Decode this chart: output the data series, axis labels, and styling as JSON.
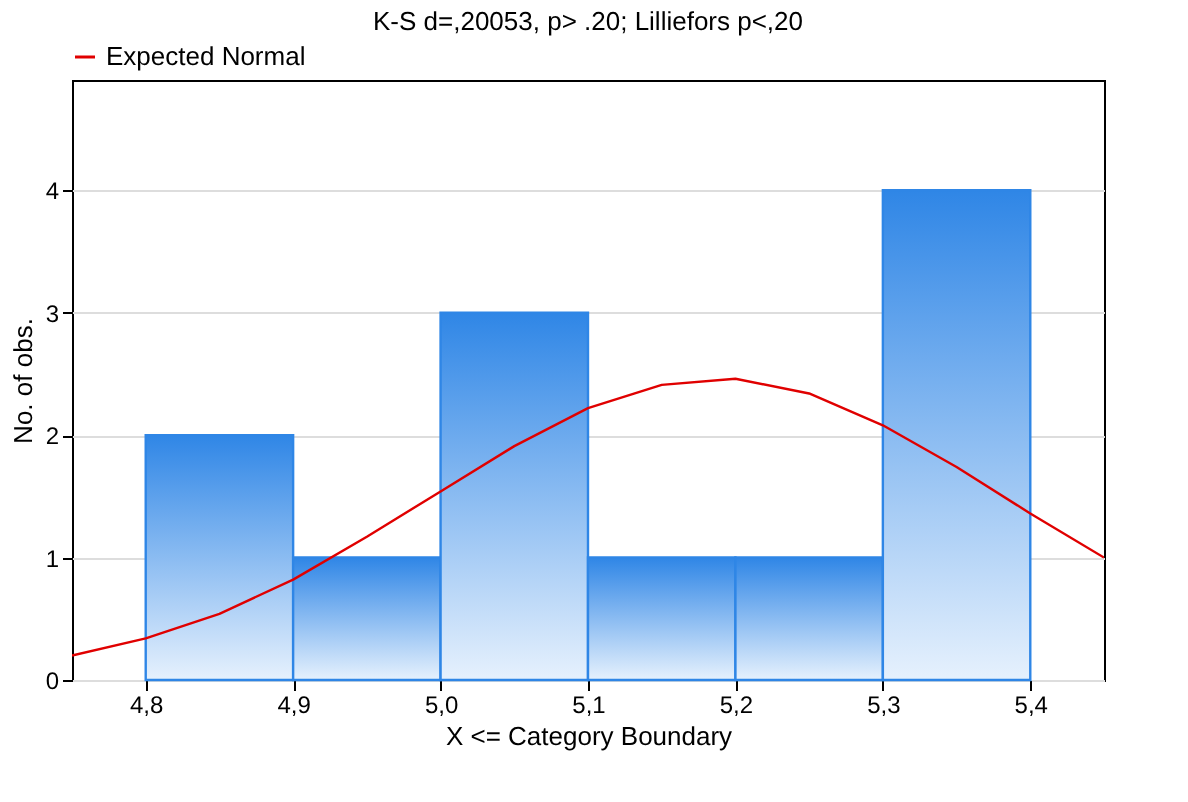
{
  "chart_data": {
    "type": "histogram",
    "title": "K-S d=,20053, p> .20; Lilliefors p<,20",
    "xlabel": "X <= Category Boundary",
    "ylabel": "No. of obs.",
    "xlim": [
      4.75,
      5.45
    ],
    "xticks": [
      {
        "value": 4.8,
        "label": "4,8"
      },
      {
        "value": 4.9,
        "label": "4,9"
      },
      {
        "value": 5.0,
        "label": "5,0"
      },
      {
        "value": 5.1,
        "label": "5,1"
      },
      {
        "value": 5.2,
        "label": "5,2"
      },
      {
        "value": 5.3,
        "label": "5,3"
      },
      {
        "value": 5.4,
        "label": "5,4"
      }
    ],
    "ylim": [
      0,
      4.9
    ],
    "yticks": [
      0,
      1,
      2,
      3,
      4
    ],
    "grid": "y",
    "legend": "top",
    "series": [
      {
        "color": "#2f86e6",
        "bins": [
          4.8,
          4.9,
          5.0,
          5.1,
          5.2,
          5.3,
          5.4
        ],
        "values": [
          2,
          1,
          3,
          1,
          1,
          4
        ]
      },
      {
        "type": "line",
        "name": "Expected Normal",
        "color": "#e00000",
        "x": [
          4.75,
          4.8,
          4.85,
          4.9,
          4.95,
          5.0,
          5.05,
          5.1,
          5.15,
          5.2,
          5.25,
          5.3,
          5.35,
          5.4,
          5.45
        ],
        "values": [
          0.2,
          0.34,
          0.54,
          0.82,
          1.17,
          1.54,
          1.91,
          2.22,
          2.41,
          2.46,
          2.34,
          2.08,
          1.74,
          1.36,
          1.0
        ]
      }
    ]
  }
}
